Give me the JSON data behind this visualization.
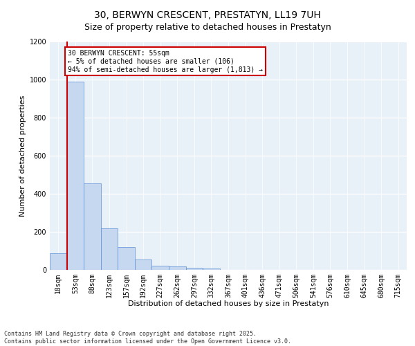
{
  "title": "30, BERWYN CRESCENT, PRESTATYN, LL19 7UH",
  "subtitle": "Size of property relative to detached houses in Prestatyn",
  "xlabel": "Distribution of detached houses by size in Prestatyn",
  "ylabel": "Number of detached properties",
  "bar_labels": [
    "18sqm",
    "53sqm",
    "88sqm",
    "123sqm",
    "157sqm",
    "192sqm",
    "227sqm",
    "262sqm",
    "297sqm",
    "332sqm",
    "367sqm",
    "401sqm",
    "436sqm",
    "471sqm",
    "506sqm",
    "541sqm",
    "576sqm",
    "610sqm",
    "645sqm",
    "680sqm",
    "715sqm"
  ],
  "bar_values": [
    88,
    990,
    455,
    220,
    120,
    55,
    22,
    17,
    12,
    8,
    0,
    0,
    0,
    0,
    0,
    0,
    0,
    0,
    0,
    0,
    0
  ],
  "bar_color": "#c5d8f0",
  "bar_edge_color": "#5b8fd4",
  "property_line_color": "#cc0000",
  "annotation_text": "30 BERWYN CRESCENT: 55sqm\n← 5% of detached houses are smaller (106)\n94% of semi-detached houses are larger (1,813) →",
  "annotation_box_color": "#cc0000",
  "ylim": [
    0,
    1200
  ],
  "yticks": [
    0,
    200,
    400,
    600,
    800,
    1000,
    1200
  ],
  "background_color": "#e8f0f8",
  "grid_color": "#ffffff",
  "footer_text": "Contains HM Land Registry data © Crown copyright and database right 2025.\nContains public sector information licensed under the Open Government Licence v3.0.",
  "title_fontsize": 10,
  "axis_label_fontsize": 8,
  "tick_fontsize": 7,
  "annotation_fontsize": 7,
  "footer_fontsize": 6
}
